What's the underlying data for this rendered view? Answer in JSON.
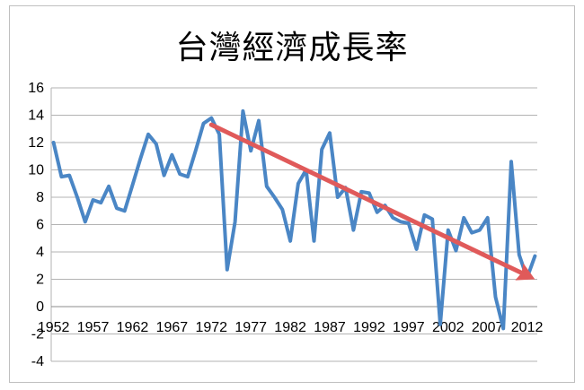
{
  "chart_data": {
    "type": "line",
    "title": "台灣經濟成長率",
    "xlabel": "",
    "ylabel": "",
    "ylim": [
      -4,
      16
    ],
    "y_ticks": [
      -4,
      -2,
      0,
      2,
      4,
      6,
      8,
      10,
      12,
      14,
      16
    ],
    "x_tick_labels": [
      "1952",
      "1957",
      "1962",
      "1967",
      "1972",
      "1977",
      "1982",
      "1987",
      "1992",
      "1997",
      "2002",
      "2007",
      "2012"
    ],
    "grid": true,
    "legend": "none",
    "series": [
      {
        "color": "#4a86c5",
        "x": [
          1952,
          1953,
          1954,
          1955,
          1956,
          1957,
          1958,
          1959,
          1960,
          1961,
          1962,
          1963,
          1964,
          1965,
          1966,
          1967,
          1968,
          1969,
          1970,
          1971,
          1972,
          1973,
          1974,
          1975,
          1976,
          1977,
          1978,
          1979,
          1980,
          1981,
          1982,
          1983,
          1984,
          1985,
          1986,
          1987,
          1988,
          1989,
          1990,
          1991,
          1992,
          1993,
          1994,
          1995,
          1996,
          1997,
          1998,
          1999,
          2000,
          2001,
          2002,
          2003,
          2004,
          2005,
          2006,
          2007,
          2008,
          2009,
          2010,
          2011,
          2012,
          2013
        ],
        "values": [
          12.0,
          9.5,
          9.6,
          8.0,
          6.2,
          7.8,
          7.6,
          8.8,
          7.2,
          7.0,
          8.9,
          10.8,
          12.6,
          11.9,
          9.6,
          11.1,
          9.7,
          9.5,
          11.4,
          13.4,
          13.8,
          12.6,
          2.7,
          6.2,
          14.3,
          11.4,
          13.6,
          8.8,
          8.0,
          7.1,
          4.8,
          9.0,
          10.0,
          4.8,
          11.5,
          12.7,
          8.0,
          8.7,
          5.6,
          8.4,
          8.3,
          6.9,
          7.4,
          6.5,
          6.2,
          6.1,
          4.2,
          6.7,
          6.4,
          -1.3,
          5.6,
          4.1,
          6.5,
          5.4,
          5.6,
          6.5,
          0.7,
          -1.6,
          10.6,
          3.8,
          2.1,
          3.7
        ]
      }
    ],
    "annotation": {
      "type": "trend-arrow",
      "color": "#e05a5a",
      "from": [
        1972,
        13.3
      ],
      "to": [
        2013,
        2.0
      ]
    }
  }
}
